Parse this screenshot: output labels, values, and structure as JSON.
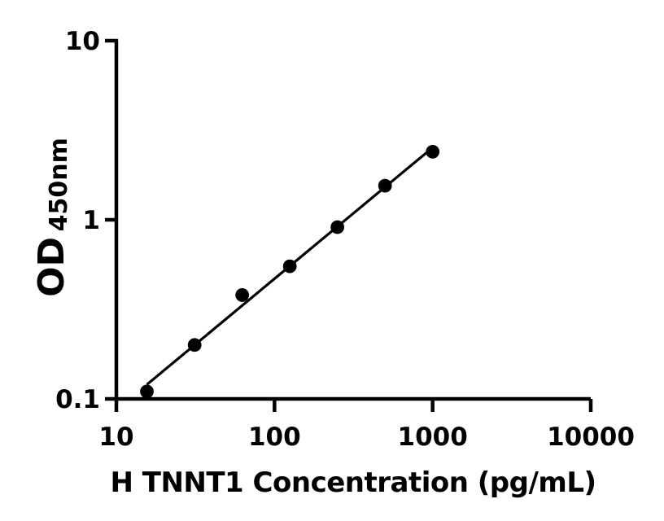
{
  "figure": {
    "background_color": "#ffffff",
    "foreground_color": "#000000"
  },
  "chart_data": {
    "type": "scatter",
    "subtype": "ELISA standard curve, log-log axes, straight fitted trend line through filled circle markers",
    "title": "",
    "xlabel": "H TNNT1 Concentration (pg/mL)",
    "ylabel_main": "OD",
    "ylabel_sub": "450nm",
    "x_scale": "log10",
    "y_scale": "log10",
    "xlim": [
      10,
      10000
    ],
    "ylim": [
      0.1,
      10
    ],
    "x_tick_values": [
      10,
      100,
      1000,
      10000
    ],
    "x_tick_labels": [
      "10",
      "100",
      "1000",
      "10000"
    ],
    "y_tick_values": [
      0.1,
      1,
      10
    ],
    "y_tick_labels": [
      "0.1",
      "1",
      "10"
    ],
    "grid": false,
    "legend": false,
    "marker": {
      "shape": "filled-circle",
      "color": "#000000",
      "radius_px": 8.4
    },
    "line": {
      "type": "log-log linear fit",
      "color": "#000000"
    },
    "x": [
      15.6,
      31.25,
      62.5,
      125,
      250,
      500,
      1000
    ],
    "y": [
      0.11,
      0.2,
      0.38,
      0.55,
      0.91,
      1.55,
      2.4
    ]
  }
}
